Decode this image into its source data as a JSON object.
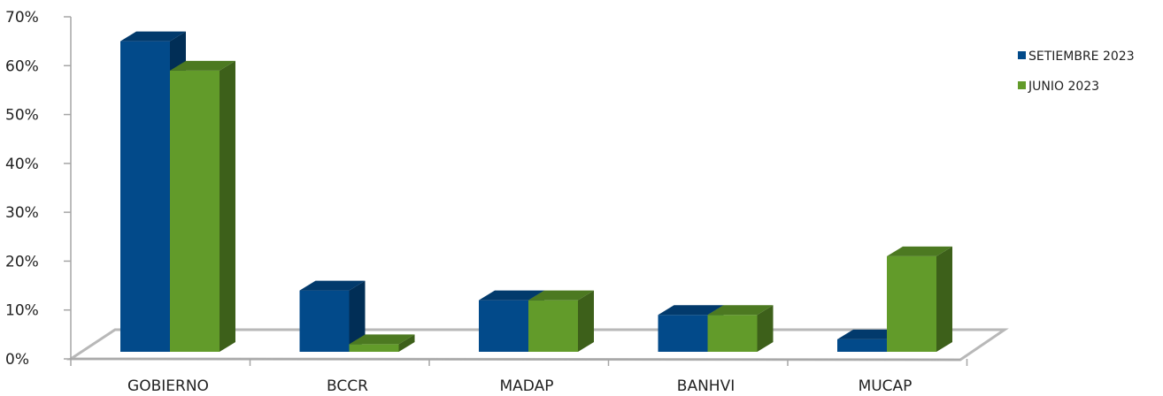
{
  "chart_data": {
    "type": "bar",
    "categories": [
      "GOBIERNO",
      "BCCR",
      "MADAP",
      "BANHVI",
      "MUCAP"
    ],
    "series": [
      {
        "name": "SETIEMBRE 2023",
        "values": [
          65,
          14,
          12,
          9,
          4
        ],
        "color": "#024a8a"
      },
      {
        "name": "JUNIO 2023",
        "values": [
          59,
          3,
          12,
          9,
          21
        ],
        "color": "#629b2a"
      }
    ],
    "yticks": [
      "0%",
      "10%",
      "20%",
      "30%",
      "40%",
      "50%",
      "60%",
      "70%"
    ],
    "ylim": [
      0,
      70
    ],
    "legend_position": "right",
    "grid": false,
    "three_d": true
  }
}
